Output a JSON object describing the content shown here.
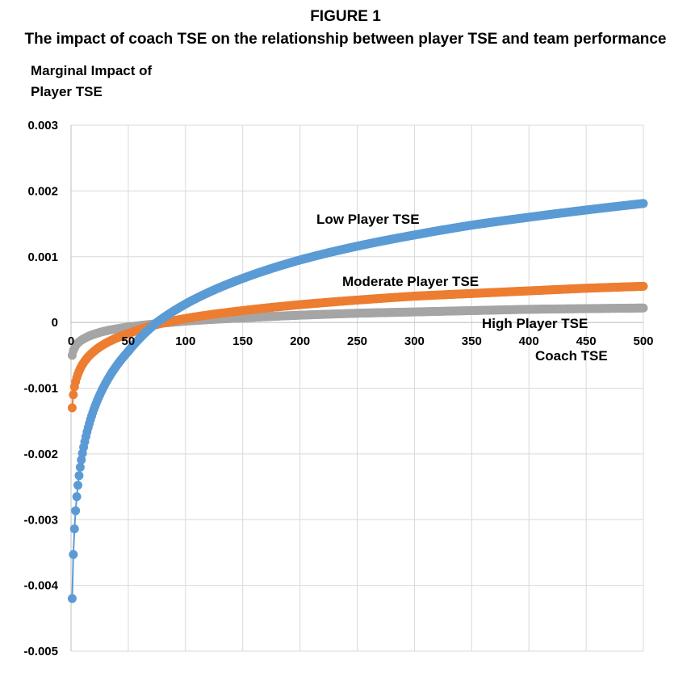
{
  "figure": {
    "label": "FIGURE 1",
    "title": "The impact of coach TSE on the relationship between player TSE and team performance"
  },
  "chart_data": {
    "type": "scatter",
    "ylabel": [
      "Marginal Impact of",
      "Player TSE"
    ],
    "xlabel": "Coach TSE",
    "xlim": [
      0,
      500
    ],
    "ylim": [
      -0.005,
      0.003
    ],
    "x_ticks": [
      "0",
      "50",
      "100",
      "150",
      "200",
      "250",
      "300",
      "350",
      "400",
      "450",
      "500"
    ],
    "y_ticks": [
      "0.003",
      "0.002",
      "0.001",
      "0",
      "-0.001",
      "-0.002",
      "-0.003",
      "-0.004",
      "-0.005"
    ],
    "grid": true,
    "series": [
      {
        "name": "Low Player TSE",
        "color": "#5b9bd5",
        "x": [
          1,
          2,
          3,
          5,
          10,
          20,
          30,
          50,
          75,
          100,
          150,
          200,
          250,
          300,
          350,
          400,
          450,
          500
        ],
        "values": [
          -0.0042,
          -0.00353,
          -0.00314,
          -0.00265,
          -0.00199,
          -0.00132,
          -0.00093,
          -0.00044,
          0.0,
          0.00028,
          0.00067,
          0.00095,
          0.00116,
          0.00133,
          0.00148,
          0.0016,
          0.00171,
          0.00181
        ]
      },
      {
        "name": "Moderate Player TSE",
        "color": "#ed7d31",
        "x": [
          1,
          2,
          3,
          5,
          10,
          20,
          30,
          50,
          75,
          100,
          150,
          200,
          250,
          300,
          350,
          400,
          450,
          500
        ],
        "values": [
          -0.0013,
          -0.0011,
          -0.00098,
          -0.00084,
          -0.00064,
          -0.00044,
          -0.00032,
          -0.00017,
          -3e-05,
          6e-05,
          0.00018,
          0.00027,
          0.00034,
          0.0004,
          0.00044,
          0.00048,
          0.00052,
          0.00055
        ]
      },
      {
        "name": "High Player TSE",
        "color": "#a5a5a5",
        "x": [
          1,
          2,
          3,
          5,
          10,
          20,
          30,
          50,
          75,
          100,
          150,
          200,
          250,
          300,
          350,
          400,
          450,
          500
        ],
        "values": [
          -0.0005,
          -0.00043,
          -0.00039,
          -0.00033,
          -0.00026,
          -0.00018,
          -0.00013,
          -7e-05,
          -2e-05,
          2e-05,
          7e-05,
          0.00011,
          0.00014,
          0.00016,
          0.00018,
          0.0002,
          0.00021,
          0.00022
        ]
      }
    ]
  }
}
